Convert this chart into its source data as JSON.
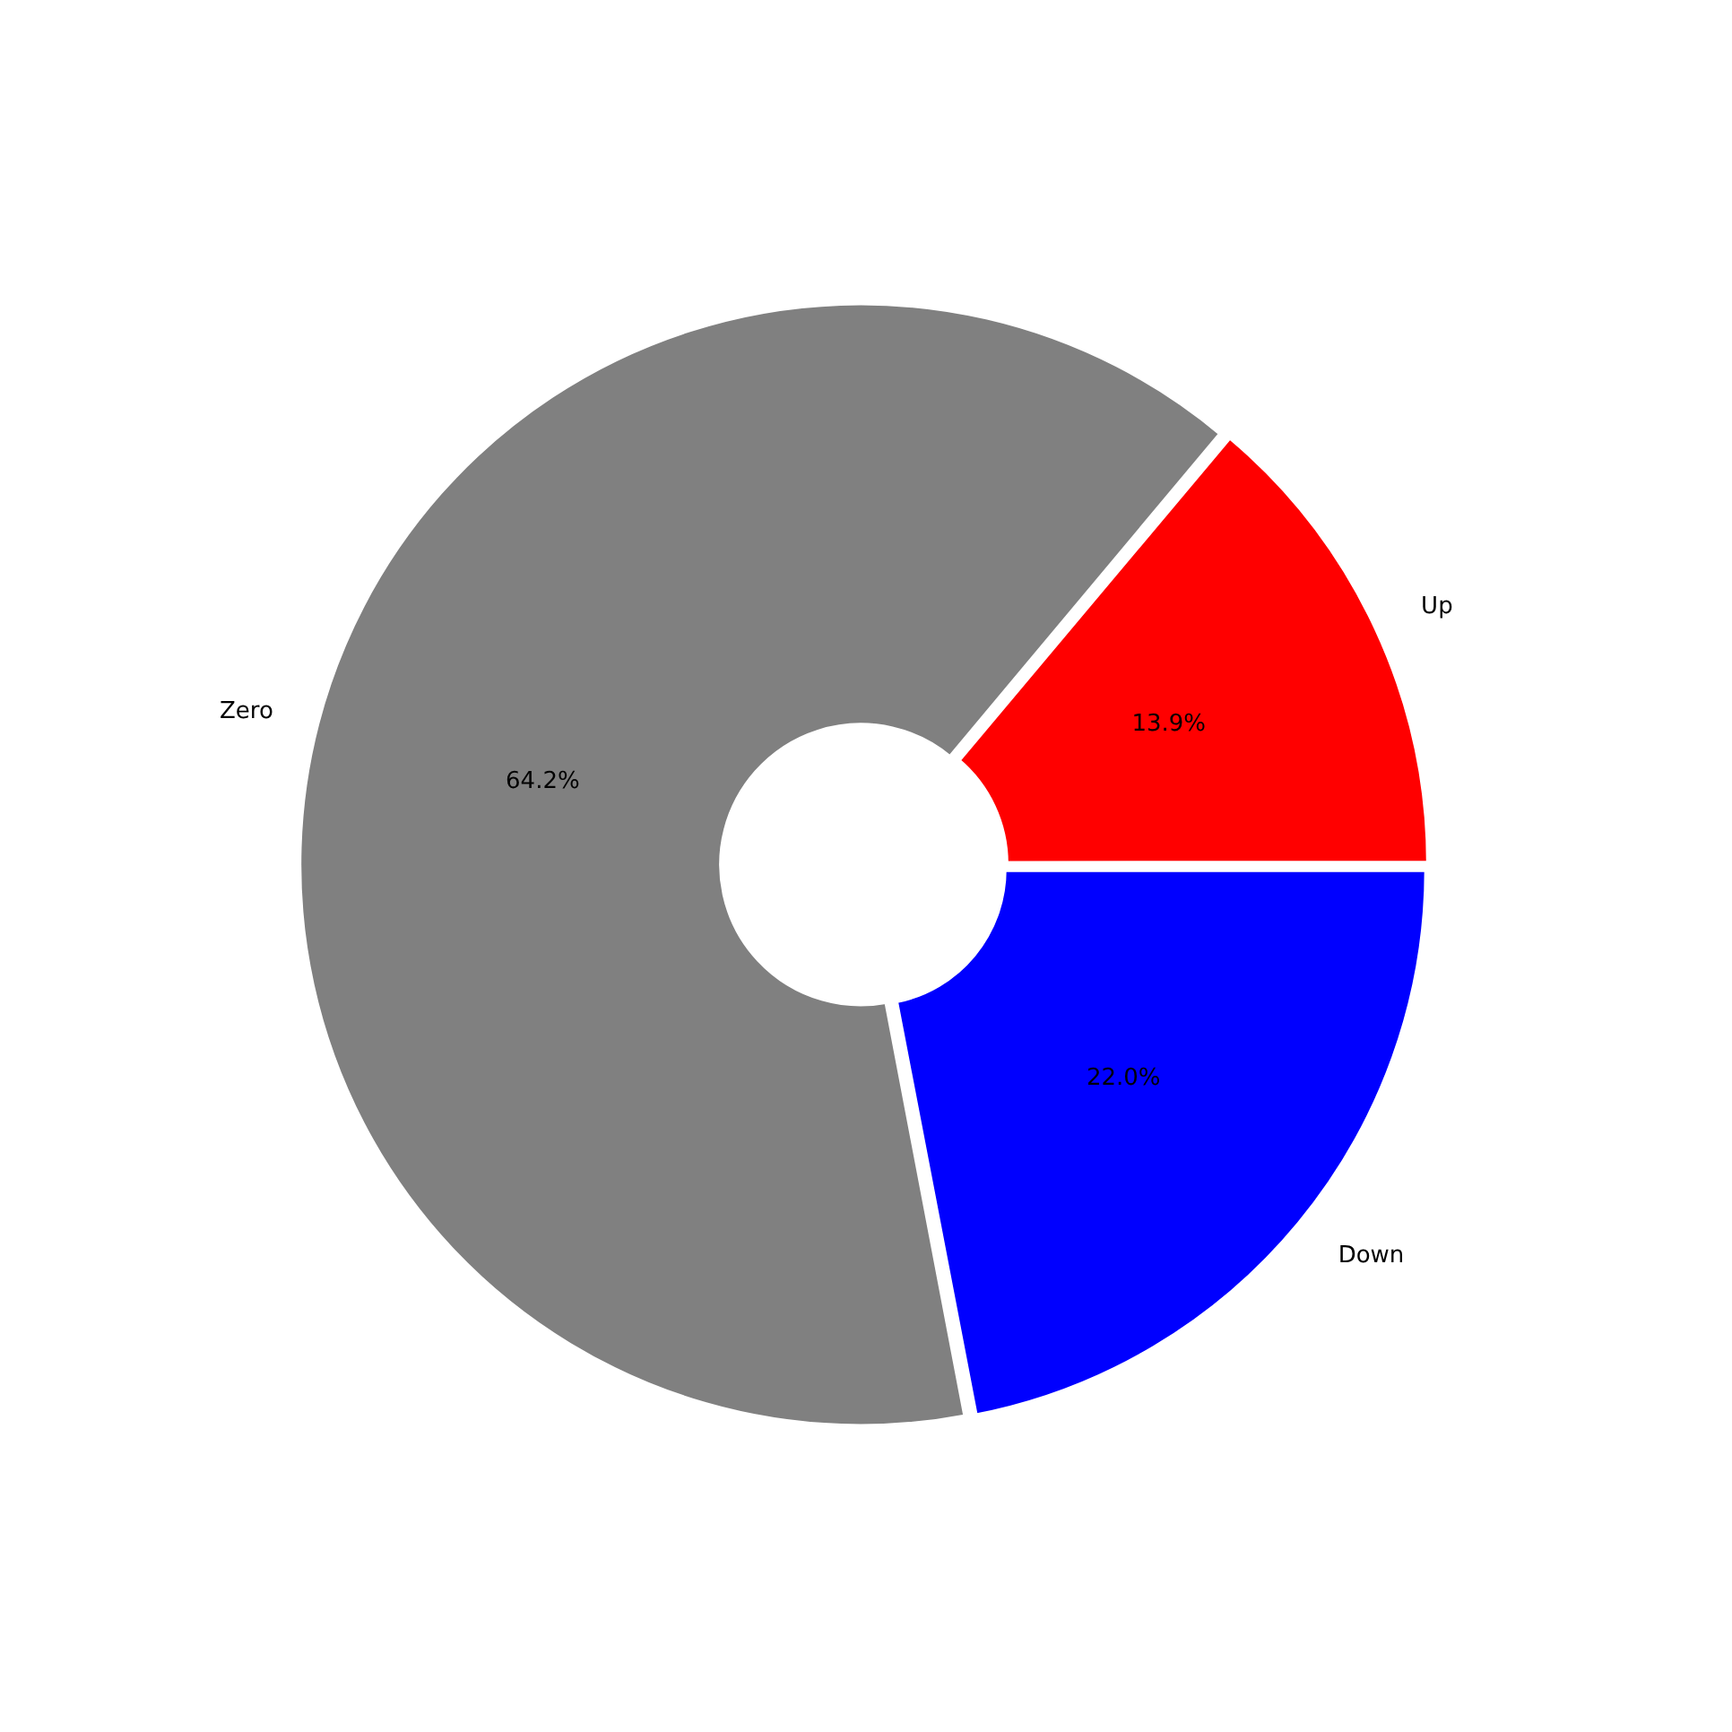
{
  "chart_data": {
    "type": "donut",
    "categories": [
      "Up",
      "Zero",
      "Down"
    ],
    "values": [
      13.9,
      64.2,
      22.0
    ],
    "colors": [
      "#ff0000",
      "#808080",
      "#0000ff"
    ],
    "value_labels": [
      "13.9%",
      "64.2%",
      "22.0%"
    ],
    "legend": false
  }
}
